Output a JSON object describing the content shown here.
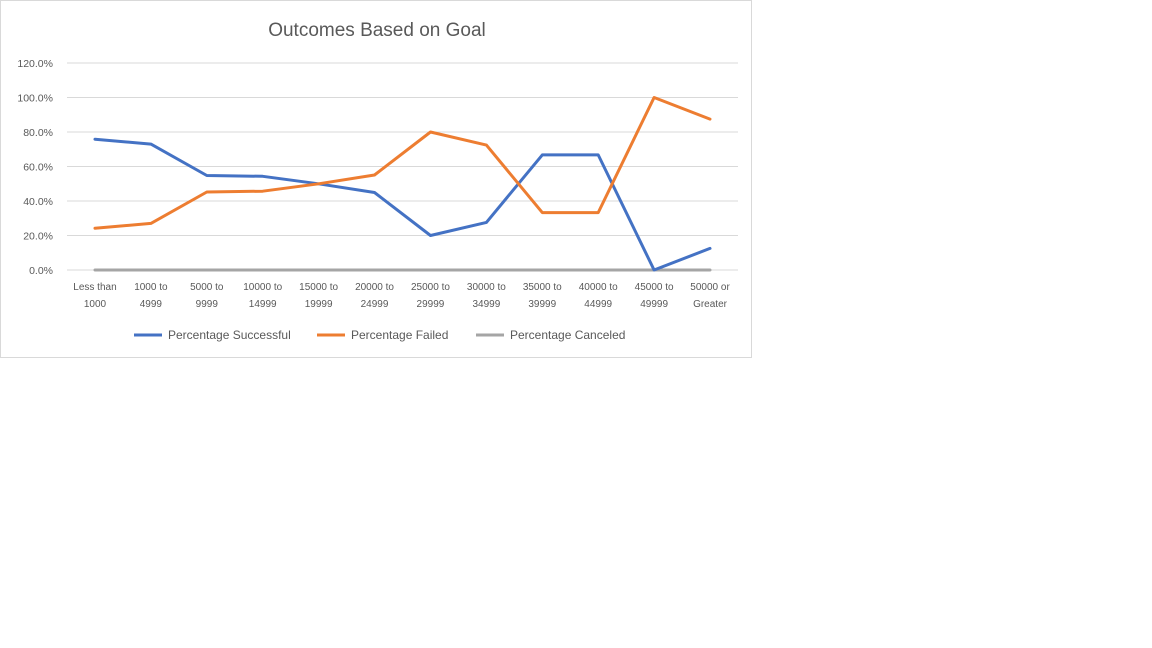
{
  "chart_data": {
    "type": "line",
    "title": "Outcomes Based on Goal",
    "xlabel": "",
    "ylabel": "",
    "ylim": [
      0,
      120
    ],
    "y_ticks": [
      "0.0%",
      "20.0%",
      "40.0%",
      "60.0%",
      "80.0%",
      "100.0%",
      "120.0%"
    ],
    "y_tick_values": [
      0,
      20,
      40,
      60,
      80,
      100,
      120
    ],
    "grid": true,
    "legend_position": "bottom",
    "categories": [
      [
        "Less than",
        "1000"
      ],
      [
        "1000 to",
        "4999"
      ],
      [
        "5000 to",
        "9999"
      ],
      [
        "10000 to",
        "14999"
      ],
      [
        "15000 to",
        "19999"
      ],
      [
        "20000 to",
        "24999"
      ],
      [
        "25000 to",
        "29999"
      ],
      [
        "30000 to",
        "34999"
      ],
      [
        "35000 to",
        "39999"
      ],
      [
        "40000 to",
        "44999"
      ],
      [
        "45000 to",
        "49999"
      ],
      [
        "50000 or",
        "Greater"
      ]
    ],
    "series": [
      {
        "name": "Percentage Successful",
        "color": "#4472c4",
        "values": [
          75.8,
          73.0,
          54.8,
          54.3,
          50.0,
          44.9,
          20.0,
          27.6,
          66.7,
          66.7,
          0.0,
          12.5
        ]
      },
      {
        "name": "Percentage Failed",
        "color": "#ed7d31",
        "values": [
          24.2,
          27.0,
          45.2,
          45.7,
          50.0,
          55.1,
          80.0,
          72.4,
          33.3,
          33.3,
          100.0,
          87.5
        ]
      },
      {
        "name": "Percentage Canceled",
        "color": "#a5a5a5",
        "values": [
          0,
          0,
          0,
          0,
          0,
          0,
          0,
          0,
          0,
          0,
          0,
          0
        ]
      }
    ]
  }
}
